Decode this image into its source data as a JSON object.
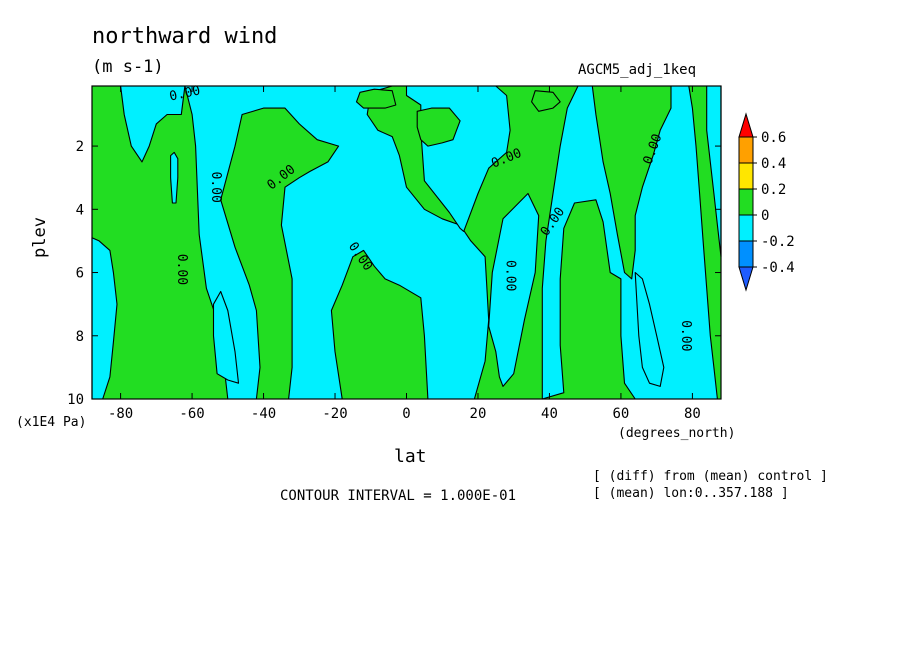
{
  "title": "northward wind",
  "units": "(m s-1)",
  "experiment": "AGCM5_adj_1keq",
  "footer": {
    "contour_interval": "CONTOUR INTERVAL = 1.000E-01",
    "note1": "[ (diff) from (mean) control ]",
    "note2": "[ (mean) lon:0..357.188 ]"
  },
  "colors": {
    "green": "#22dd22",
    "cyan": "#00f0ff",
    "orange": "#ffa000",
    "yellow": "#ffe600",
    "red": "#ff0000",
    "blue": "#0090ff",
    "dark_blue": "#1e5cff"
  },
  "chart_data": {
    "type": "heatmap",
    "style": "filled contour",
    "title": "northward wind",
    "units": "(m s-1)",
    "xlabel": "lat",
    "x_unit_label": "(degrees_north)",
    "ylabel": "plev",
    "y_unit_label": "(x1E4 Pa)",
    "xlim": [
      -88,
      88
    ],
    "ylim": [
      10,
      0.1
    ],
    "x_ticks": [
      "-80",
      "-60",
      "-40",
      "-20",
      "0",
      "20",
      "40",
      "60",
      "80"
    ],
    "x_tick_values": [
      -80,
      -60,
      -40,
      -20,
      0,
      20,
      40,
      60,
      80
    ],
    "y_ticks": [
      "2",
      "4",
      "6",
      "8",
      "10"
    ],
    "y_tick_values": [
      2,
      4,
      6,
      8,
      10
    ],
    "contour_interval": 0.1,
    "contour_label": "0.00",
    "colorbar": {
      "labels": [
        "0.6",
        "0.4",
        "0.2",
        "0",
        "-0.2",
        "-0.4"
      ],
      "bands": [
        {
          "range": "0.4 to 0.6",
          "color": "#ffa000"
        },
        {
          "range": "0.2 to 0.4",
          "color": "#ffe600"
        },
        {
          "range": "0 to 0.2",
          "color": "#22dd22"
        },
        {
          "range": "-0.2 to 0",
          "color": "#00f0ff"
        },
        {
          "range": "-0.4 to -0.2",
          "color": "#0090ff"
        }
      ],
      "over_color": "#ff0000",
      "under_color": "#1e5cff"
    },
    "regions": [
      {
        "value_range": "0 to 0.2",
        "color": "#22dd22",
        "points": [
          [
            -88,
            0.1
          ],
          [
            88,
            0.1
          ],
          [
            88,
            10
          ],
          [
            -88,
            10
          ]
        ]
      },
      {
        "value_range": "-0.2 to 0",
        "color": "#00f0ff",
        "points": [
          [
            -88,
            4.9
          ],
          [
            -86,
            5.0
          ],
          [
            -83,
            5.3
          ],
          [
            -82,
            6.0
          ],
          [
            -81,
            7.0
          ],
          [
            -82,
            8.2
          ],
          [
            -83,
            9.3
          ],
          [
            -85,
            10
          ],
          [
            -88,
            10
          ]
        ]
      },
      {
        "value_range": "-0.2 to 0",
        "color": "#00f0ff",
        "points": [
          [
            -88,
            0.1
          ],
          [
            -80,
            0.1
          ],
          [
            -79,
            1.0
          ],
          [
            -77,
            2.0
          ],
          [
            -74,
            2.5
          ],
          [
            -72,
            2.0
          ],
          [
            -70,
            1.3
          ],
          [
            -67,
            1.0
          ],
          [
            -63,
            1.0
          ],
          [
            -62,
            0.1
          ],
          [
            -88,
            0.1
          ]
        ]
      },
      {
        "value_range": "-0.2 to 0",
        "color": "#00f0ff",
        "points": [
          [
            -66,
            2.3
          ],
          [
            -65,
            2.2
          ],
          [
            -64,
            2.4
          ],
          [
            -64,
            3.0
          ],
          [
            -64.5,
            3.8
          ],
          [
            -65.5,
            3.8
          ],
          [
            -66,
            3.0
          ]
        ]
      },
      {
        "value_range": "-0.2 to 0",
        "color": "#00f0ff",
        "points": [
          [
            -62,
            0.1
          ],
          [
            -4,
            0.1
          ],
          [
            -10,
            0.3
          ],
          [
            -11,
            1.0
          ],
          [
            -8,
            1.5
          ],
          [
            -4,
            1.7
          ],
          [
            -2,
            2.3
          ],
          [
            0,
            3.3
          ],
          [
            5,
            4.0
          ],
          [
            10,
            4.3
          ],
          [
            15,
            4.5
          ],
          [
            18,
            5.0
          ],
          [
            22,
            5.5
          ],
          [
            23,
            7.5
          ],
          [
            22,
            8.8
          ],
          [
            19,
            10
          ],
          [
            6,
            10
          ],
          [
            5,
            8.0
          ],
          [
            4,
            6.8
          ],
          [
            -2,
            6.4
          ],
          [
            -6,
            6.2
          ],
          [
            -9,
            5.8
          ],
          [
            -12,
            5.3
          ],
          [
            -15,
            5.5
          ],
          [
            -18,
            6.4
          ],
          [
            -21,
            7.2
          ],
          [
            -20,
            8.5
          ],
          [
            -18,
            10
          ],
          [
            -33,
            10
          ],
          [
            -32,
            9.0
          ],
          [
            -32,
            6.2
          ],
          [
            -35,
            4.5
          ],
          [
            -34,
            3.3
          ],
          [
            -30,
            3.0
          ],
          [
            -27,
            2.8
          ],
          [
            -22,
            2.5
          ],
          [
            -19,
            2.0
          ],
          [
            -25,
            1.8
          ],
          [
            -30,
            1.3
          ],
          [
            -34,
            0.8
          ],
          [
            -40,
            0.8
          ],
          [
            -46,
            1.0
          ],
          [
            -48,
            2.0
          ],
          [
            -52,
            3.7
          ],
          [
            -48,
            5.2
          ],
          [
            -44,
            6.4
          ],
          [
            -42,
            7.2
          ],
          [
            -41,
            9.0
          ],
          [
            -42,
            10
          ],
          [
            -50,
            10
          ],
          [
            -51,
            9.0
          ],
          [
            -53,
            7.5
          ],
          [
            -56,
            6.5
          ],
          [
            -58,
            4.8
          ],
          [
            -59,
            2.0
          ],
          [
            -60,
            1.0
          ]
        ]
      },
      {
        "value_range": "-0.2 to 0",
        "color": "#00f0ff",
        "points": [
          [
            -52,
            6.6
          ],
          [
            -50,
            7.2
          ],
          [
            -48,
            8.5
          ],
          [
            -47,
            9.5
          ],
          [
            -50,
            9.4
          ],
          [
            -53,
            9.2
          ],
          [
            -54,
            8.0
          ],
          [
            -54,
            7.0
          ]
        ]
      },
      {
        "value_range": "-0.2 to 0",
        "color": "#00f0ff",
        "points": [
          [
            0,
            0.1
          ],
          [
            25,
            0.1
          ],
          [
            28,
            0.4
          ],
          [
            29,
            1.5
          ],
          [
            28,
            2.2
          ],
          [
            23,
            2.7
          ],
          [
            20,
            3.5
          ],
          [
            17,
            4.4
          ],
          [
            16,
            4.7
          ],
          [
            15,
            4.6
          ],
          [
            12,
            4.1
          ],
          [
            5,
            3.1
          ],
          [
            4,
            1.5
          ],
          [
            4,
            0.7
          ],
          [
            0,
            0.4
          ]
        ]
      },
      {
        "value_range": "-0.2 to 0",
        "color": "#00f0ff",
        "points": [
          [
            34,
            3.5
          ],
          [
            37,
            4.2
          ],
          [
            36,
            6.0
          ],
          [
            33,
            7.5
          ],
          [
            30,
            9.2
          ],
          [
            27,
            9.6
          ],
          [
            26,
            9.3
          ],
          [
            25,
            8.5
          ],
          [
            23,
            7.7
          ],
          [
            24,
            6.0
          ],
          [
            27,
            4.3
          ]
        ]
      },
      {
        "value_range": "-0.2 to 0",
        "color": "#00f0ff",
        "points": [
          [
            48,
            0.1
          ],
          [
            52,
            0.1
          ],
          [
            53,
            1.0
          ],
          [
            55,
            2.5
          ],
          [
            57,
            3.5
          ],
          [
            59,
            4.8
          ],
          [
            61,
            6.0
          ],
          [
            63,
            6.2
          ],
          [
            64,
            5.3
          ],
          [
            64,
            4.2
          ],
          [
            66,
            3.3
          ],
          [
            69,
            2.3
          ],
          [
            71,
            1.5
          ],
          [
            74,
            0.8
          ],
          [
            74,
            0.1
          ],
          [
            79,
            0.1
          ],
          [
            80,
            0.8
          ],
          [
            81,
            2.0
          ],
          [
            82,
            3.5
          ],
          [
            83,
            5.0
          ],
          [
            84,
            6.5
          ],
          [
            85,
            8.0
          ],
          [
            86,
            9.0
          ],
          [
            87,
            10
          ],
          [
            64,
            10
          ],
          [
            61,
            9.5
          ],
          [
            60,
            8.0
          ],
          [
            60,
            6.2
          ],
          [
            57,
            6.0
          ],
          [
            55,
            4.4
          ],
          [
            53,
            3.7
          ],
          [
            47,
            3.8
          ],
          [
            44,
            4.6
          ],
          [
            43,
            6.2
          ],
          [
            43,
            8.3
          ],
          [
            44,
            9.8
          ],
          [
            38,
            10
          ],
          [
            38,
            8.2
          ],
          [
            38,
            6.5
          ],
          [
            39,
            5.0
          ],
          [
            41,
            3.5
          ],
          [
            43,
            2.0
          ],
          [
            45,
            0.8
          ]
        ]
      },
      {
        "value_range": "-0.2 to 0",
        "color": "#00f0ff",
        "points": [
          [
            64,
            6.0
          ],
          [
            66,
            6.2
          ],
          [
            68,
            7.0
          ],
          [
            70,
            8.0
          ],
          [
            72,
            9.0
          ],
          [
            71,
            9.6
          ],
          [
            68,
            9.5
          ],
          [
            66,
            9.0
          ],
          [
            65,
            8.0
          ]
        ]
      },
      {
        "value_range": "-0.2 to 0",
        "color": "#00f0ff",
        "points": [
          [
            84,
            0.1
          ],
          [
            88,
            0.1
          ],
          [
            88,
            5.5
          ],
          [
            87,
            4.5
          ],
          [
            86,
            3.5
          ],
          [
            85,
            2.5
          ],
          [
            84,
            1.5
          ]
        ]
      },
      {
        "value_range": "0 to 0.2",
        "color": "#22dd22",
        "points": [
          [
            -13,
            0.3
          ],
          [
            -9,
            0.2
          ],
          [
            -4,
            0.25
          ],
          [
            -3,
            0.7
          ],
          [
            -6,
            0.8
          ],
          [
            -12,
            0.8
          ],
          [
            -14,
            0.6
          ]
        ]
      },
      {
        "value_range": "0 to 0.2",
        "color": "#22dd22",
        "points": [
          [
            3,
            0.9
          ],
          [
            7,
            0.8
          ],
          [
            12,
            0.8
          ],
          [
            15,
            1.2
          ],
          [
            14,
            1.5
          ],
          [
            13,
            1.8
          ],
          [
            10,
            1.9
          ],
          [
            6,
            2.0
          ],
          [
            4,
            1.8
          ],
          [
            3,
            1.4
          ]
        ]
      },
      {
        "value_range": "0 to 0.2",
        "color": "#22dd22",
        "points": [
          [
            36,
            0.25
          ],
          [
            41,
            0.3
          ],
          [
            43,
            0.6
          ],
          [
            41,
            0.8
          ],
          [
            37,
            0.9
          ],
          [
            35,
            0.6
          ]
        ]
      }
    ],
    "contour_label_positions": [
      {
        "text": "0.00",
        "lat": -62,
        "plev": 0.35,
        "angle": -12
      },
      {
        "text": "0.00",
        "lat": -53.5,
        "plev": 3.3,
        "angle": 90
      },
      {
        "text": "0.00",
        "lat": -35,
        "plev": 3.0,
        "angle": -38
      },
      {
        "text": "0.00",
        "lat": -63,
        "plev": 5.9,
        "angle": 90
      },
      {
        "text": "0.00",
        "lat": -13,
        "plev": 5.5,
        "angle": 55
      },
      {
        "text": "0.00",
        "lat": 28,
        "plev": 2.4,
        "angle": -22
      },
      {
        "text": "0.00",
        "lat": 41,
        "plev": 4.4,
        "angle": -55
      },
      {
        "text": "0.00",
        "lat": 29,
        "plev": 6.1,
        "angle": 90
      },
      {
        "text": "0.00",
        "lat": 69,
        "plev": 2.1,
        "angle": -70
      },
      {
        "text": "0.00",
        "lat": 78,
        "plev": 8.0,
        "angle": 90
      }
    ]
  }
}
